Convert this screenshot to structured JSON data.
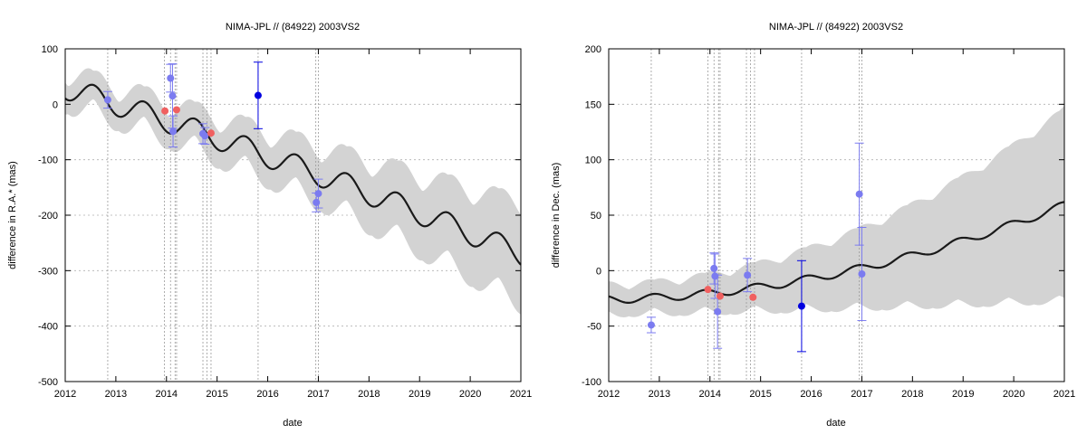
{
  "colors": {
    "band": "#d3d3d3",
    "model": "#1a1a1a",
    "gaia": "#7b7bf0",
    "highlight": "#0000e0",
    "red": "#f06060",
    "grid": "#b0b0b0"
  },
  "chart_data": [
    {
      "type": "line",
      "title": "NIMA-JPL // (84922) 2003VS2",
      "xlabel": "date",
      "ylabel": "difference in R.A.* (mas)",
      "xlim": [
        2012,
        2021
      ],
      "ylim": [
        -500,
        100
      ],
      "x_ticks": [
        2012,
        2013,
        2014,
        2015,
        2016,
        2017,
        2018,
        2019,
        2020,
        2021
      ],
      "y_ticks": [
        -500,
        -400,
        -300,
        -200,
        -100,
        0,
        100
      ],
      "grid": true,
      "vertical_lines": [
        12.84,
        13.96,
        14.08,
        14.17,
        14.2,
        14.72,
        14.8,
        14.88,
        15.81,
        16.95,
        17.0
      ],
      "model": {
        "offset": 30,
        "slope": -28.8,
        "curve": -0.5,
        "amplitude": 21,
        "phase": 0.56,
        "band": [
          25,
          0.75,
          10.5
        ]
      },
      "points": [
        {
          "x": 2012.84,
          "y": 8,
          "err": 15,
          "color": "gaia"
        },
        {
          "x": 2014.08,
          "y": 47,
          "err": 25,
          "color": "gaia"
        },
        {
          "x": 2014.12,
          "y": 15,
          "err": 58,
          "color": "gaia"
        },
        {
          "x": 2014.13,
          "y": -49,
          "err": 28,
          "color": "gaia"
        },
        {
          "x": 2014.72,
          "y": -53,
          "err": 18,
          "color": "gaia"
        },
        {
          "x": 2014.76,
          "y": -57,
          "err": 15,
          "color": "gaia"
        },
        {
          "x": 2016.96,
          "y": -177,
          "err": 17,
          "color": "gaia"
        },
        {
          "x": 2017.0,
          "y": -161,
          "err": 26,
          "color": "gaia"
        },
        {
          "x": 2015.81,
          "y": 16,
          "err": 60,
          "color": "highlight"
        },
        {
          "x": 2013.97,
          "y": -12,
          "err": 0,
          "color": "red"
        },
        {
          "x": 2014.2,
          "y": -10,
          "err": 0,
          "color": "red"
        },
        {
          "x": 2014.88,
          "y": -52,
          "err": 0,
          "color": "red"
        }
      ]
    },
    {
      "type": "line",
      "title": "NIMA-JPL // (84922) 2003VS2",
      "xlabel": "date",
      "ylabel": "difference in Dec. (mas)",
      "xlim": [
        2012,
        2021
      ],
      "ylim": [
        -100,
        200
      ],
      "x_ticks": [
        2012,
        2013,
        2014,
        2015,
        2016,
        2017,
        2018,
        2019,
        2020,
        2021
      ],
      "y_ticks": [
        -100,
        -50,
        0,
        50,
        100,
        150,
        200
      ],
      "grid": true,
      "vertical_lines": [
        12.84,
        13.96,
        14.08,
        14.17,
        14.2,
        14.72,
        14.8,
        14.88,
        15.81,
        16.95,
        17.0
      ],
      "model": {
        "offset": -26,
        "slope": 0.9,
        "curve": 0.95,
        "amplitude": 3.5,
        "phase": 0.9,
        "band": [
          12,
          0.9,
          2.6
        ]
      },
      "points": [
        {
          "x": 2012.84,
          "y": -49,
          "err": 7,
          "color": "gaia"
        },
        {
          "x": 2014.08,
          "y": 2,
          "err": 14,
          "color": "gaia"
        },
        {
          "x": 2014.1,
          "y": -5,
          "err": 20,
          "color": "gaia"
        },
        {
          "x": 2014.15,
          "y": -37,
          "err": 33,
          "color": "gaia"
        },
        {
          "x": 2014.74,
          "y": -4,
          "err": 15,
          "color": "gaia"
        },
        {
          "x": 2016.95,
          "y": 69,
          "err": 46,
          "color": "gaia"
        },
        {
          "x": 2017.0,
          "y": -3,
          "err": 42,
          "color": "gaia"
        },
        {
          "x": 2015.81,
          "y": -32,
          "err": 41,
          "color": "highlight"
        },
        {
          "x": 2013.96,
          "y": -17,
          "err": 0,
          "color": "red"
        },
        {
          "x": 2014.2,
          "y": -23,
          "err": 0,
          "color": "red"
        },
        {
          "x": 2014.85,
          "y": -24,
          "err": 0,
          "color": "red"
        }
      ]
    }
  ]
}
